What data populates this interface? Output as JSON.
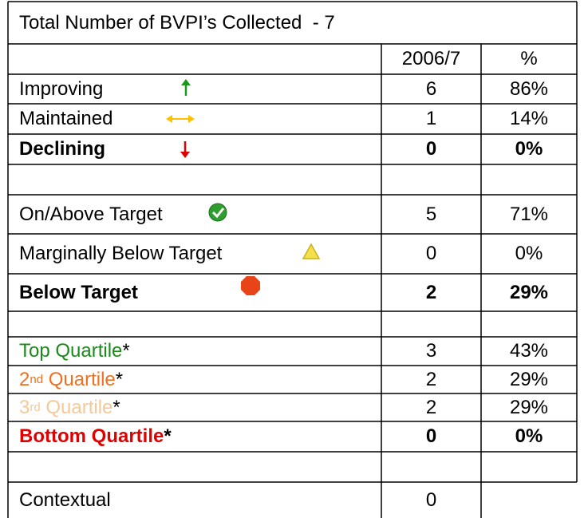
{
  "title": "Total Number of BVPI’s Collected  - 7",
  "header": [
    "2006/7",
    "%"
  ],
  "rows": [
    {
      "label": "Improving",
      "value": 6,
      "percent": "86%"
    },
    {
      "label": "Maintained",
      "value": 1,
      "percent": "14%"
    },
    {
      "label": "Declining",
      "value": 0,
      "percent": "0%"
    },
    {
      "label": "On/Above Target",
      "value": 5,
      "percent": "71%"
    },
    {
      "label": "Marginally Below Target",
      "value": 0,
      "percent": "0%"
    },
    {
      "label": "Below Target",
      "value": 2,
      "percent": "29%"
    },
    {
      "label": "Top Quartile",
      "mark": "*",
      "value": 3,
      "percent": "43%"
    },
    {
      "label": "2",
      "sup": "nd",
      "rest": " Quartile",
      "mark": "*",
      "value": 2,
      "percent": "29%"
    },
    {
      "label": "3",
      "sup": "rd",
      "rest": " Quartile",
      "mark": "*",
      "value": 2,
      "percent": "29%"
    },
    {
      "label": "Bottom Quartile",
      "mark": "*",
      "value": 0,
      "percent": "0%"
    },
    {
      "label": "Contextual",
      "value": 0
    }
  ]
}
